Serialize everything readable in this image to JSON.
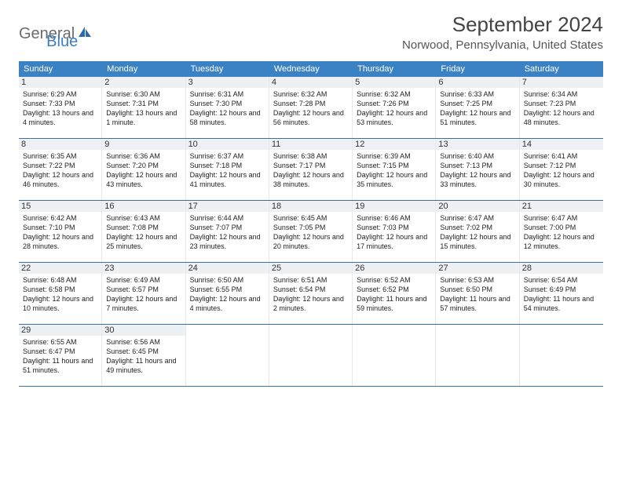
{
  "logo": {
    "general": "General",
    "blue": "Blue"
  },
  "header": {
    "title": "September 2024",
    "location": "Norwood, Pennsylvania, United States"
  },
  "colors": {
    "header_bg": "#3b82c4",
    "header_text": "#ffffff",
    "day_number_bg": "#eef1f3",
    "row_border": "#3b6fa0",
    "logo_gray": "#6b6b6b",
    "logo_blue": "#3b7fc4"
  },
  "weekdays": [
    "Sunday",
    "Monday",
    "Tuesday",
    "Wednesday",
    "Thursday",
    "Friday",
    "Saturday"
  ],
  "weeks": [
    [
      {
        "n": "1",
        "sunrise": "6:29 AM",
        "sunset": "7:33 PM",
        "daylight": "13 hours and 4 minutes."
      },
      {
        "n": "2",
        "sunrise": "6:30 AM",
        "sunset": "7:31 PM",
        "daylight": "13 hours and 1 minute."
      },
      {
        "n": "3",
        "sunrise": "6:31 AM",
        "sunset": "7:30 PM",
        "daylight": "12 hours and 58 minutes."
      },
      {
        "n": "4",
        "sunrise": "6:32 AM",
        "sunset": "7:28 PM",
        "daylight": "12 hours and 56 minutes."
      },
      {
        "n": "5",
        "sunrise": "6:32 AM",
        "sunset": "7:26 PM",
        "daylight": "12 hours and 53 minutes."
      },
      {
        "n": "6",
        "sunrise": "6:33 AM",
        "sunset": "7:25 PM",
        "daylight": "12 hours and 51 minutes."
      },
      {
        "n": "7",
        "sunrise": "6:34 AM",
        "sunset": "7:23 PM",
        "daylight": "12 hours and 48 minutes."
      }
    ],
    [
      {
        "n": "8",
        "sunrise": "6:35 AM",
        "sunset": "7:22 PM",
        "daylight": "12 hours and 46 minutes."
      },
      {
        "n": "9",
        "sunrise": "6:36 AM",
        "sunset": "7:20 PM",
        "daylight": "12 hours and 43 minutes."
      },
      {
        "n": "10",
        "sunrise": "6:37 AM",
        "sunset": "7:18 PM",
        "daylight": "12 hours and 41 minutes."
      },
      {
        "n": "11",
        "sunrise": "6:38 AM",
        "sunset": "7:17 PM",
        "daylight": "12 hours and 38 minutes."
      },
      {
        "n": "12",
        "sunrise": "6:39 AM",
        "sunset": "7:15 PM",
        "daylight": "12 hours and 35 minutes."
      },
      {
        "n": "13",
        "sunrise": "6:40 AM",
        "sunset": "7:13 PM",
        "daylight": "12 hours and 33 minutes."
      },
      {
        "n": "14",
        "sunrise": "6:41 AM",
        "sunset": "7:12 PM",
        "daylight": "12 hours and 30 minutes."
      }
    ],
    [
      {
        "n": "15",
        "sunrise": "6:42 AM",
        "sunset": "7:10 PM",
        "daylight": "12 hours and 28 minutes."
      },
      {
        "n": "16",
        "sunrise": "6:43 AM",
        "sunset": "7:08 PM",
        "daylight": "12 hours and 25 minutes."
      },
      {
        "n": "17",
        "sunrise": "6:44 AM",
        "sunset": "7:07 PM",
        "daylight": "12 hours and 23 minutes."
      },
      {
        "n": "18",
        "sunrise": "6:45 AM",
        "sunset": "7:05 PM",
        "daylight": "12 hours and 20 minutes."
      },
      {
        "n": "19",
        "sunrise": "6:46 AM",
        "sunset": "7:03 PM",
        "daylight": "12 hours and 17 minutes."
      },
      {
        "n": "20",
        "sunrise": "6:47 AM",
        "sunset": "7:02 PM",
        "daylight": "12 hours and 15 minutes."
      },
      {
        "n": "21",
        "sunrise": "6:47 AM",
        "sunset": "7:00 PM",
        "daylight": "12 hours and 12 minutes."
      }
    ],
    [
      {
        "n": "22",
        "sunrise": "6:48 AM",
        "sunset": "6:58 PM",
        "daylight": "12 hours and 10 minutes."
      },
      {
        "n": "23",
        "sunrise": "6:49 AM",
        "sunset": "6:57 PM",
        "daylight": "12 hours and 7 minutes."
      },
      {
        "n": "24",
        "sunrise": "6:50 AM",
        "sunset": "6:55 PM",
        "daylight": "12 hours and 4 minutes."
      },
      {
        "n": "25",
        "sunrise": "6:51 AM",
        "sunset": "6:54 PM",
        "daylight": "12 hours and 2 minutes."
      },
      {
        "n": "26",
        "sunrise": "6:52 AM",
        "sunset": "6:52 PM",
        "daylight": "11 hours and 59 minutes."
      },
      {
        "n": "27",
        "sunrise": "6:53 AM",
        "sunset": "6:50 PM",
        "daylight": "11 hours and 57 minutes."
      },
      {
        "n": "28",
        "sunrise": "6:54 AM",
        "sunset": "6:49 PM",
        "daylight": "11 hours and 54 minutes."
      }
    ],
    [
      {
        "n": "29",
        "sunrise": "6:55 AM",
        "sunset": "6:47 PM",
        "daylight": "11 hours and 51 minutes."
      },
      {
        "n": "30",
        "sunrise": "6:56 AM",
        "sunset": "6:45 PM",
        "daylight": "11 hours and 49 minutes."
      },
      null,
      null,
      null,
      null,
      null
    ]
  ],
  "labels": {
    "sunrise_prefix": "Sunrise: ",
    "sunset_prefix": "Sunset: ",
    "daylight_prefix": "Daylight: "
  }
}
